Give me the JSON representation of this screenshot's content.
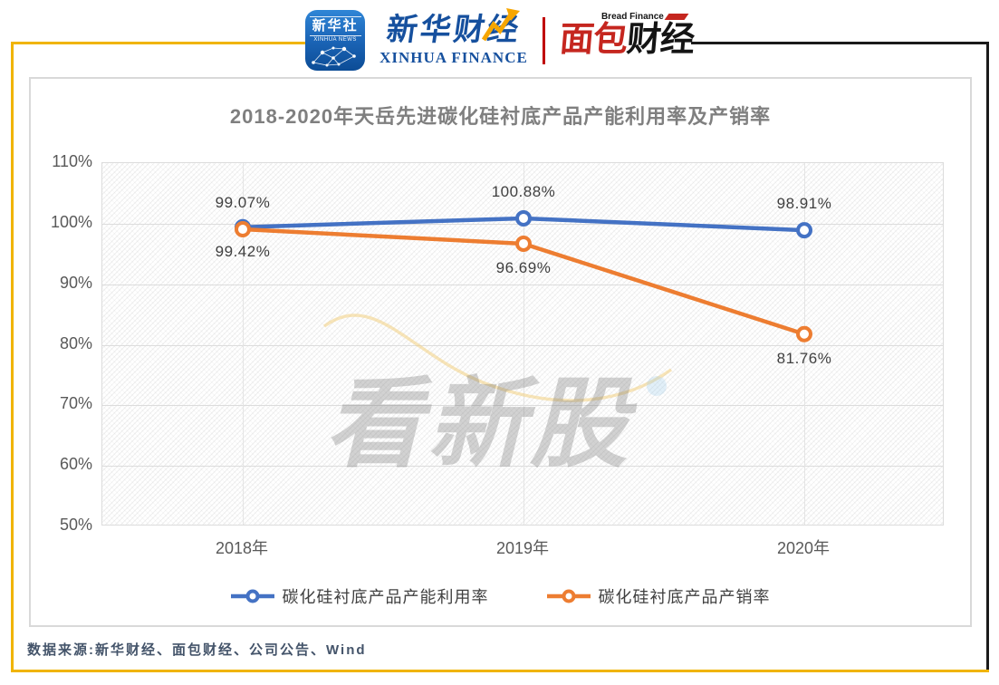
{
  "header": {
    "xinhua_app": {
      "cn": "新华社",
      "en": "XINHUA NEWS"
    },
    "xinhua_finance": {
      "cn": "新华财经",
      "en": "XINHUA FINANCE"
    },
    "bread_finance": {
      "en": "Bread Finance",
      "cn_red": "面包",
      "cn_black": "财经"
    }
  },
  "watermark": {
    "text": "看新股"
  },
  "chart_data": {
    "type": "line",
    "title": "2018-2020年天岳先进碳化硅衬底产品产能利用率及产销率",
    "categories": [
      "2018年",
      "2019年",
      "2020年"
    ],
    "series": [
      {
        "name": "碳化硅衬底产品产能利用率",
        "color": "#4472C4",
        "values": [
          99.42,
          100.88,
          98.91
        ],
        "labels": [
          "99.42%",
          "100.88%",
          "98.91%"
        ],
        "label_positions": [
          "below",
          "above",
          "above"
        ]
      },
      {
        "name": "碳化硅衬底产品产销率",
        "color": "#ED7D31",
        "values": [
          99.07,
          96.69,
          81.76
        ],
        "labels": [
          "99.07%",
          "96.69%",
          "81.76%"
        ],
        "label_positions": [
          "above",
          "below",
          "below"
        ]
      }
    ],
    "ylim": [
      50,
      110
    ],
    "ytick_labels": [
      "110%",
      "100%",
      "90%",
      "80%",
      "70%",
      "60%",
      "50%"
    ],
    "grid": true,
    "legend_position": "bottom"
  },
  "footer": {
    "source": "数据来源:新华财经、面包财经、公司公告、Wind"
  },
  "colors": {
    "series_blue": "#4472C4",
    "series_orange": "#ED7D31",
    "frame_yellow": "#F0B400",
    "frame_black": "#1A1A1A",
    "divider_red": "#C00000",
    "bread_red": "#C5261F",
    "xinhua_blue": "#16509E",
    "title_gray": "#7F7F7F",
    "source_navy": "#44546A"
  }
}
